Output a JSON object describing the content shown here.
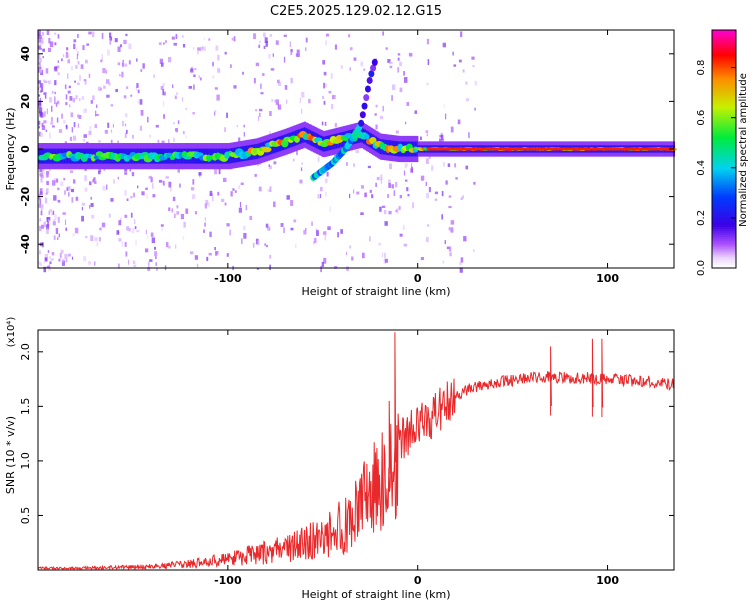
{
  "title": "C2E5.2025.129.02.12.G15",
  "colors": {
    "snr_line": "#e8282a",
    "frame": "#000000",
    "background": "#ffffff"
  },
  "chart_data": [
    {
      "type": "heatmap",
      "title": "C2E5.2025.129.02.12.G15",
      "xlabel": "Height of straight line (km)",
      "ylabel": "Frequency (Hz)",
      "xlim": [
        -200,
        135
      ],
      "ylim": [
        -50,
        50
      ],
      "xticks": [
        -100,
        0,
        100
      ],
      "yticks": [
        -40,
        -20,
        0,
        20,
        40
      ],
      "colorbar": {
        "label": "Normalized spectral amplitude",
        "range": [
          0.0,
          0.95
        ],
        "ticks": [
          0.0,
          0.2,
          0.4,
          0.6,
          0.8
        ],
        "colormap": "rainbow (white-violet-blue-cyan-green-yellow-red-magenta)"
      },
      "features": [
        {
          "name": "main_trace",
          "description": "dominant signal band",
          "points": [
            [
              -200,
              -3
            ],
            [
              -150,
              -3
            ],
            [
              -120,
              -3
            ],
            [
              -100,
              -3
            ],
            [
              -85,
              -1
            ],
            [
              -70,
              3
            ],
            [
              -60,
              6
            ],
            [
              -50,
              2
            ],
            [
              -40,
              4
            ],
            [
              -30,
              6
            ],
            [
              -20,
              1
            ],
            [
              -10,
              0
            ],
            [
              0,
              0
            ],
            [
              50,
              0
            ],
            [
              100,
              0
            ],
            [
              135,
              0
            ]
          ]
        },
        {
          "name": "secondary_branch",
          "description": "weaker diagonal branch",
          "points": [
            [
              -55,
              -12
            ],
            [
              -45,
              -6
            ],
            [
              -38,
              0
            ],
            [
              -30,
              10
            ],
            [
              -25,
              30
            ],
            [
              -22,
              38
            ]
          ]
        }
      ],
      "grid": false
    },
    {
      "type": "line",
      "xlabel": "Height of straight line (km)",
      "ylabel": "SNR (10 * v/v)",
      "y_multiplier": "(x10⁴)",
      "xlim": [
        -200,
        135
      ],
      "ylim": [
        0,
        2.2
      ],
      "xticks": [
        -100,
        0,
        100
      ],
      "yticks": [
        0.5,
        1.0,
        1.5,
        2.0
      ],
      "ytick_labels": [
        "0.5",
        "1.0",
        "1.5",
        "2.0"
      ],
      "series": [
        {
          "envelope": {
            "x": [
              -200,
              -180,
              -160,
              -140,
              -120,
              -100,
              -80,
              -60,
              -50,
              -40,
              -30,
              -20,
              -15,
              -10,
              0,
              10,
              20,
              30,
              40,
              50,
              60,
              70,
              80,
              90,
              100,
              110,
              120,
              135
            ],
            "y": [
              0.02,
              0.02,
              0.03,
              0.04,
              0.07,
              0.12,
              0.2,
              0.3,
              0.38,
              0.5,
              0.7,
              0.95,
              1.1,
              1.2,
              1.3,
              1.45,
              1.6,
              1.68,
              1.72,
              1.74,
              1.76,
              1.77,
              1.76,
              1.76,
              1.75,
              1.74,
              1.73,
              1.7
            ]
          },
          "spikes": [
            {
              "x": -12,
              "y": 2.18
            },
            {
              "x": -15,
              "y": 1.55
            },
            {
              "x": 70,
              "y": 2.05
            },
            {
              "x": 92,
              "y": 2.12
            },
            {
              "x": 97,
              "y": 2.12
            }
          ]
        }
      ],
      "grid": false
    }
  ]
}
